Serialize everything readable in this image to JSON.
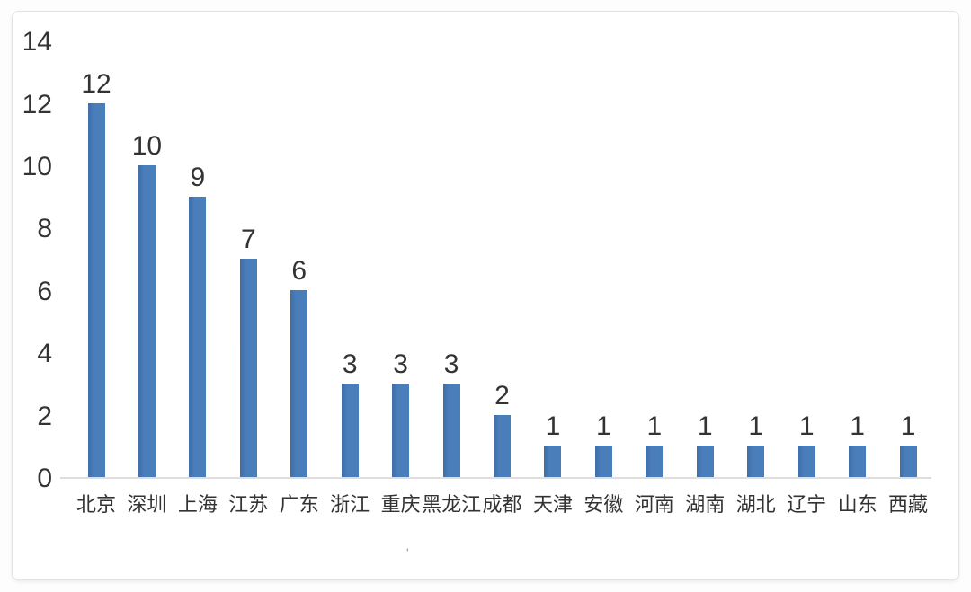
{
  "page": {
    "stray_mark": "'"
  },
  "colors": {
    "bar": "#4a7ebb",
    "bar_edge": "#3f6ea8",
    "text": "#333333",
    "axis_line": "#dedede",
    "card_border": "#e2e2e2",
    "card_background": "#ffffff",
    "page_background": "#fdfdfd"
  },
  "chart_data": {
    "type": "bar",
    "categories": [
      "北京",
      "深圳",
      "上海",
      "江苏",
      "广东",
      "浙江",
      "重庆",
      "黑龙江",
      "成都",
      "天津",
      "安徽",
      "河南",
      "湖南",
      "湖北",
      "辽宁",
      "山东",
      "西藏"
    ],
    "values": [
      12,
      10,
      9,
      7,
      6,
      3,
      3,
      3,
      2,
      1,
      1,
      1,
      1,
      1,
      1,
      1,
      1
    ],
    "title": "",
    "xlabel": "",
    "ylabel": "",
    "ylim": [
      0,
      14
    ],
    "yticks": [
      0,
      2,
      4,
      6,
      8,
      10,
      12,
      14
    ],
    "grid": false,
    "legend": "none",
    "data_labels": true,
    "bar_color": "#4a7ebb"
  }
}
